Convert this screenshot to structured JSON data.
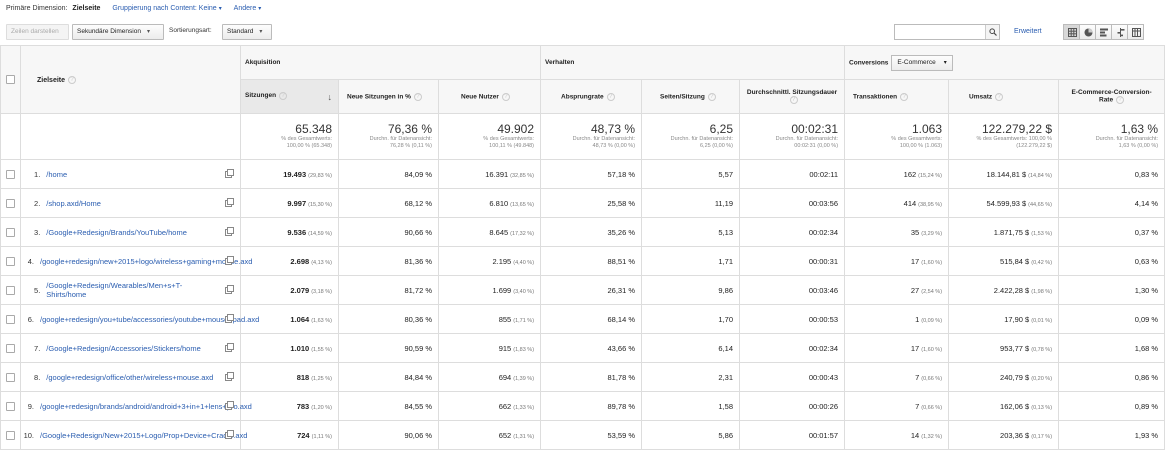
{
  "dimension_bar": {
    "label": "Primäre Dimension:",
    "active": "Zielseite",
    "grouping": "Gruppierung nach Content: Keine",
    "other": "Andere"
  },
  "toolbar": {
    "plot_rows": "Zeilen darstellen",
    "secondary_dim": "Sekundäre Dimension",
    "sort_label": "Sortierungsart:",
    "sort_value": "Standard",
    "advanced": "Erweitert"
  },
  "groups": {
    "acquisition": "Akquisition",
    "behavior": "Verhalten",
    "conversions": "Conversions",
    "conversion_select": "E-Commerce"
  },
  "columns": {
    "landing_page": "Zielseite",
    "sessions": "Sitzungen",
    "new_sessions_pct": "Neue Sitzungen in %",
    "new_users": "Neue Nutzer",
    "bounce_rate": "Absprungrate",
    "pages_per_session": "Seiten/Sitzung",
    "avg_duration": "Durchschnittl. Sitzungsdauer",
    "transactions": "Transaktionen",
    "revenue": "Umsatz",
    "conversion_rate": "E-Commerce-Conversion-Rate"
  },
  "totals": [
    {
      "value": "65.348",
      "sub1": "% des Gesamtwerts:",
      "sub2": "100,00 % (65.348)"
    },
    {
      "value": "76,36 %",
      "sub1": "Durchn. für Datenansicht:",
      "sub2": "76,28 % (0,11 %)"
    },
    {
      "value": "49.902",
      "sub1": "% des Gesamtwerts:",
      "sub2": "100,11 % (49.848)"
    },
    {
      "value": "48,73 %",
      "sub1": "Durchn. für Datenansicht:",
      "sub2": "48,73 % (0,00 %)"
    },
    {
      "value": "6,25",
      "sub1": "Durchn. für Datenansicht:",
      "sub2": "6,25 (0,00 %)"
    },
    {
      "value": "00:02:31",
      "sub1": "Durchn. für Datenansicht:",
      "sub2": "00:02:31 (0,00 %)"
    },
    {
      "value": "1.063",
      "sub1": "% des Gesamtwerts:",
      "sub2": "100,00 % (1.063)"
    },
    {
      "value": "122.279,22 $",
      "sub1": "% des Gesamtwerts: 100,00 %",
      "sub2": "(122.279,22 $)"
    },
    {
      "value": "1,63 %",
      "sub1": "Durchn. für Datenansicht:",
      "sub2": "1,63 % (0,00 %)"
    }
  ],
  "rows": [
    {
      "n": "1.",
      "page": "/home",
      "sessions": "19.493",
      "sessions_pct": "(29,83 %)",
      "new_pct": "84,09 %",
      "new_users": "16.391",
      "new_users_pct": "(32,85 %)",
      "bounce": "57,18 %",
      "pps": "5,57",
      "dur": "00:02:11",
      "tx": "162",
      "tx_pct": "(15,24 %)",
      "rev": "18.144,81 $",
      "rev_pct": "(14,84 %)",
      "cr": "0,83 %"
    },
    {
      "n": "2.",
      "page": "/shop.axd/Home",
      "sessions": "9.997",
      "sessions_pct": "(15,30 %)",
      "new_pct": "68,12 %",
      "new_users": "6.810",
      "new_users_pct": "(13,65 %)",
      "bounce": "25,58 %",
      "pps": "11,19",
      "dur": "00:03:56",
      "tx": "414",
      "tx_pct": "(38,95 %)",
      "rev": "54.599,93 $",
      "rev_pct": "(44,65 %)",
      "cr": "4,14 %"
    },
    {
      "n": "3.",
      "page": "/Google+Redesign/Brands/YouTube/home",
      "sessions": "9.536",
      "sessions_pct": "(14,59 %)",
      "new_pct": "90,66 %",
      "new_users": "8.645",
      "new_users_pct": "(17,32 %)",
      "bounce": "35,26 %",
      "pps": "5,13",
      "dur": "00:02:34",
      "tx": "35",
      "tx_pct": "(3,29 %)",
      "rev": "1.871,75 $",
      "rev_pct": "(1,53 %)",
      "cr": "0,37 %"
    },
    {
      "n": "4.",
      "page": "/google+redesign/new+2015+logo/wireless+gaming+mouse.axd",
      "sessions": "2.698",
      "sessions_pct": "(4,13 %)",
      "new_pct": "81,36 %",
      "new_users": "2.195",
      "new_users_pct": "(4,40 %)",
      "bounce": "88,51 %",
      "pps": "1,71",
      "dur": "00:00:31",
      "tx": "17",
      "tx_pct": "(1,60 %)",
      "rev": "515,84 $",
      "rev_pct": "(0,42 %)",
      "cr": "0,63 %"
    },
    {
      "n": "5.",
      "page": "/Google+Redesign/Wearables/Men+s+T-Shirts/home",
      "sessions": "2.079",
      "sessions_pct": "(3,18 %)",
      "new_pct": "81,72 %",
      "new_users": "1.699",
      "new_users_pct": "(3,40 %)",
      "bounce": "26,31 %",
      "pps": "9,86",
      "dur": "00:03:46",
      "tx": "27",
      "tx_pct": "(2,54 %)",
      "rev": "2.422,28 $",
      "rev_pct": "(1,98 %)",
      "cr": "1,30 %"
    },
    {
      "n": "6.",
      "page": "/google+redesign/you+tube/accessories/youtube+mouse+pad.axd",
      "sessions": "1.064",
      "sessions_pct": "(1,63 %)",
      "new_pct": "80,36 %",
      "new_users": "855",
      "new_users_pct": "(1,71 %)",
      "bounce": "68,14 %",
      "pps": "1,70",
      "dur": "00:00:53",
      "tx": "1",
      "tx_pct": "(0,09 %)",
      "rev": "17,90 $",
      "rev_pct": "(0,01 %)",
      "cr": "0,09 %"
    },
    {
      "n": "7.",
      "page": "/Google+Redesign/Accessories/Stickers/home",
      "sessions": "1.010",
      "sessions_pct": "(1,55 %)",
      "new_pct": "90,59 %",
      "new_users": "915",
      "new_users_pct": "(1,83 %)",
      "bounce": "43,66 %",
      "pps": "6,14",
      "dur": "00:02:34",
      "tx": "17",
      "tx_pct": "(1,60 %)",
      "rev": "953,77 $",
      "rev_pct": "(0,78 %)",
      "cr": "1,68 %"
    },
    {
      "n": "8.",
      "page": "/google+redesign/office/other/wireless+mouse.axd",
      "sessions": "818",
      "sessions_pct": "(1,25 %)",
      "new_pct": "84,84 %",
      "new_users": "694",
      "new_users_pct": "(1,39 %)",
      "bounce": "81,78 %",
      "pps": "2,31",
      "dur": "00:00:43",
      "tx": "7",
      "tx_pct": "(0,66 %)",
      "rev": "240,79 $",
      "rev_pct": "(0,20 %)",
      "cr": "0,86 %"
    },
    {
      "n": "9.",
      "page": "/google+redesign/brands/android/android+3+in+1+lens+pro.axd",
      "sessions": "783",
      "sessions_pct": "(1,20 %)",
      "new_pct": "84,55 %",
      "new_users": "662",
      "new_users_pct": "(1,33 %)",
      "bounce": "89,78 %",
      "pps": "1,58",
      "dur": "00:00:26",
      "tx": "7",
      "tx_pct": "(0,66 %)",
      "rev": "162,06 $",
      "rev_pct": "(0,13 %)",
      "cr": "0,89 %"
    },
    {
      "n": "10.",
      "page": "/Google+Redesign/New+2015+Logo/Prop+Device+Cradle.axd",
      "sessions": "724",
      "sessions_pct": "(1,11 %)",
      "new_pct": "90,06 %",
      "new_users": "652",
      "new_users_pct": "(1,31 %)",
      "bounce": "53,59 %",
      "pps": "5,86",
      "dur": "00:01:57",
      "tx": "14",
      "tx_pct": "(1,32 %)",
      "rev": "203,36 $",
      "rev_pct": "(0,17 %)",
      "cr": "1,93 %"
    }
  ]
}
